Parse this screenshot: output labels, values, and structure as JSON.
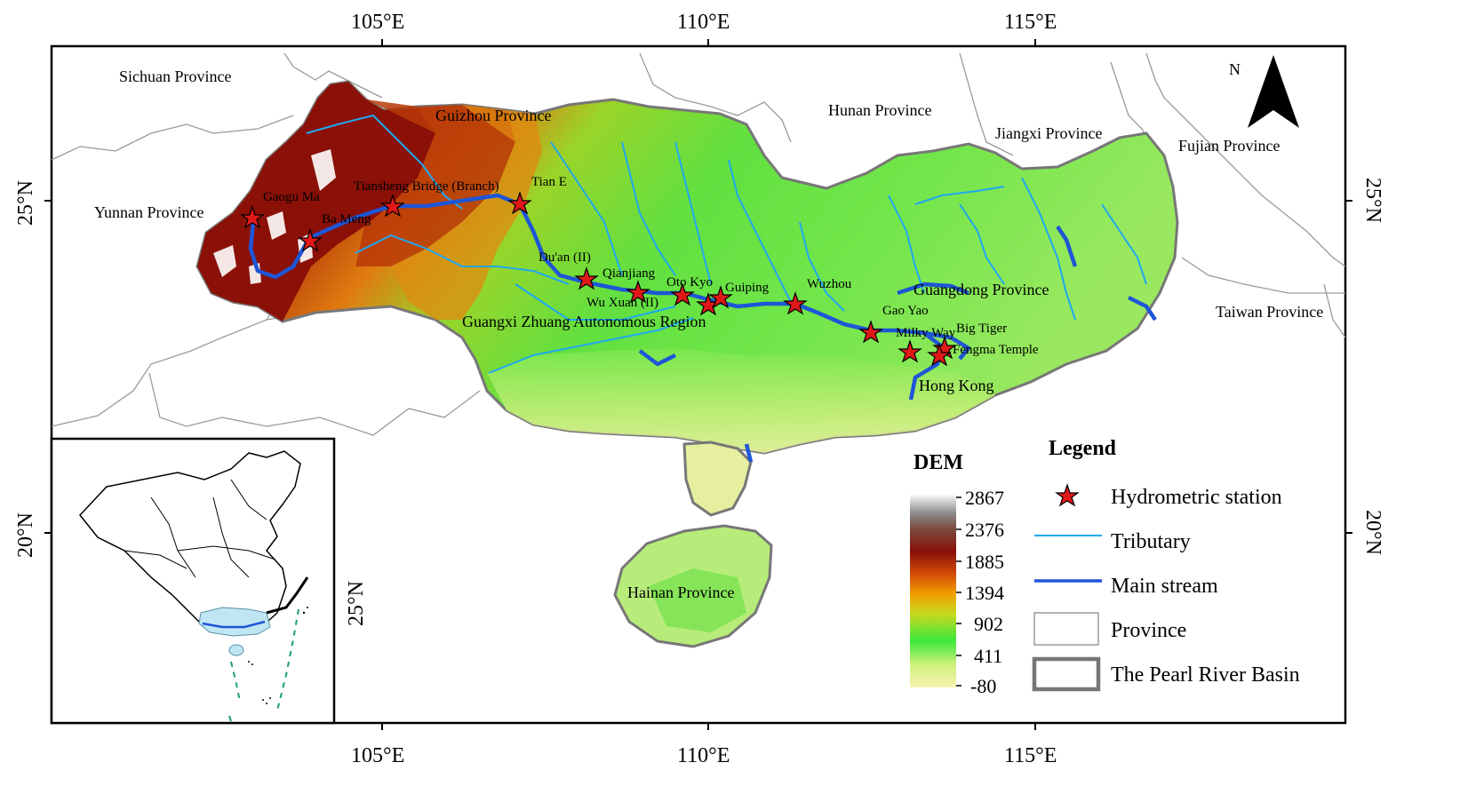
{
  "axes": {
    "top_lon_labels": [
      "105°E",
      "110°E",
      "115°E"
    ],
    "bottom_lon_labels": [
      "105°E",
      "110°E",
      "115°E"
    ],
    "left_lat_labels": [
      "25°N",
      "20°N"
    ],
    "right_lat_labels": [
      "25°N",
      "20°N"
    ]
  },
  "north_arrow": {
    "label": "N"
  },
  "provinces": [
    "Sichuan Province",
    "Guizhou Province",
    "Hunan Province",
    "Jiangxi Province",
    "Fujian Province",
    "Yunnan Province",
    "Guangxi Zhuang Autonomous Region",
    "Guangdong Province",
    "Taiwan Province",
    "Hong Kong",
    "Hainan Province"
  ],
  "stations": [
    "Gaogu Ma",
    "Tiansheng Bridge (Branch)",
    "Tian E",
    "Ba Meng",
    "Du'an (II)",
    "Qianjiang",
    "Wu Xuan (II)",
    "Oto Kyo",
    "Guiping",
    "Wuzhou",
    "Gao Yao",
    "Milky Way",
    "Big Tiger",
    "Fengma Temple"
  ],
  "inset": {
    "lat_label": "25°N"
  },
  "dem_legend": {
    "title": "DEM",
    "ticks": [
      "2867",
      "2376",
      "1885",
      "1394",
      "902",
      "411",
      "-80"
    ],
    "colors": [
      "#ffffff",
      "#8a8a8a",
      "#7a1010",
      "#a82a08",
      "#f0a000",
      "#3ce83c",
      "#f5f0a0"
    ]
  },
  "legend": {
    "title": "Legend",
    "items": [
      "Hydrometric station",
      "Tributary",
      "Main stream",
      "Province",
      "The Pearl River Basin"
    ]
  },
  "colors": {
    "tributary": "#1fa8f0",
    "main_stream": "#1e56d6",
    "station_fill": "#e01818",
    "basin_outline": "#777777",
    "province_line": "#9a9a9a"
  }
}
